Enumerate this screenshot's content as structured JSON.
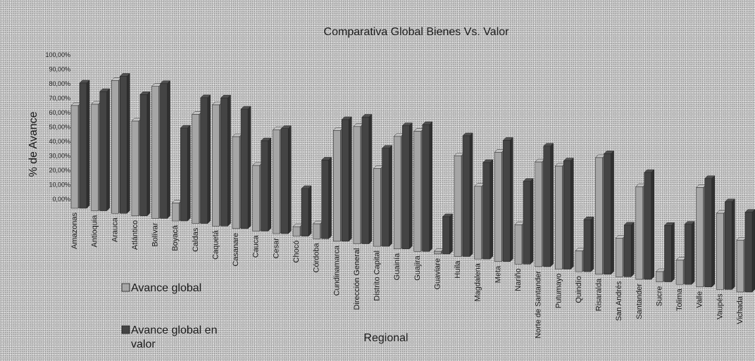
{
  "chart_data": {
    "type": "bar",
    "title": "Comparativa Global Bienes Vs. Valor",
    "xlabel": "Regional",
    "ylabel": "% de Avance",
    "ylim": [
      0,
      100
    ],
    "yticks": [
      "0,00%",
      "10,00%",
      "20,00%",
      "30,00%",
      "40,00%",
      "50,00%",
      "60,00%",
      "70,00%",
      "80,00%",
      "90,00%",
      "100,00%"
    ],
    "grid": false,
    "legend_position": "bottom-left",
    "categories": [
      "Amazonas",
      "Antioquia",
      "Arauca",
      "Atlántico",
      "Bolívar",
      "Boyacá",
      "Caldas",
      "Caquetá",
      "Casanare",
      "Cauca",
      "Cesar",
      "Chocó",
      "Córdoba",
      "Cundinamarca",
      "Dirección General",
      "Distrito Capital",
      "Guainía",
      "Guajira",
      "Guaviare",
      "Huila",
      "Magdalena",
      "Meta",
      "Nariño",
      "Norte de Santander",
      "Putumayo",
      "Quindío",
      "Risaralda",
      "San Andrés",
      "Santander",
      "Sucre",
      "Tolima",
      "Valle",
      "Vaupés",
      "Vichada"
    ],
    "series": [
      {
        "name": "Avance global",
        "color": "#a6a6a6",
        "values": [
          73,
          76,
          95,
          68,
          95,
          13,
          79,
          88,
          67,
          48,
          76,
          7,
          11,
          82,
          87,
          58,
          84,
          90,
          2,
          76,
          55,
          83,
          30,
          80,
          79,
          16,
          90,
          30,
          72,
          8,
          19,
          78,
          60,
          41
        ]
      },
      {
        "name": "Avance global en valor",
        "color": "#444444",
        "values": [
          89,
          85,
          98,
          87,
          97,
          67,
          91,
          93,
          87,
          66,
          77,
          35,
          58,
          90,
          94,
          73,
          92,
          95,
          28,
          91,
          73,
          92,
          63,
          92,
          83,
          40,
          93,
          40,
          83,
          44,
          47,
          85,
          69,
          63
        ]
      }
    ]
  }
}
